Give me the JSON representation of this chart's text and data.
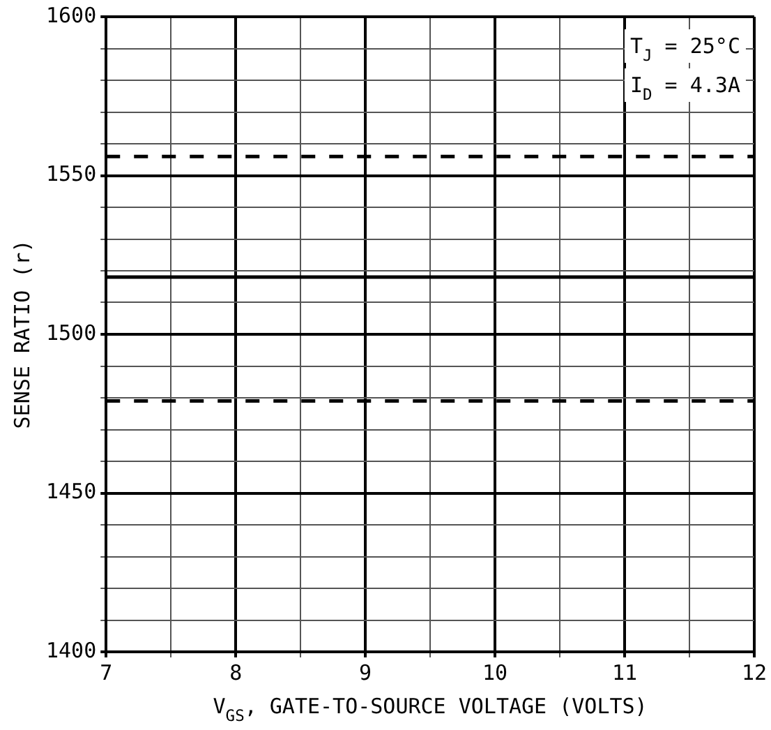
{
  "chart_data": {
    "type": "line",
    "xlabel": "V$_{GS}$, GATE-TO-SOURCE VOLTAGE (VOLTS)",
    "ylabel": "SENSE RATIO (r)",
    "annotations": [
      "T$_{J}$ = 25°C",
      "I$_{D}$ = 4.3A"
    ],
    "xlim": [
      7,
      12
    ],
    "xticks": [
      7,
      {
        "value": 7.5,
        "label": null
      },
      8,
      {
        "value": 8.5,
        "label": null
      },
      9,
      {
        "value": 9.5,
        "label": null
      },
      10,
      {
        "value": 10.5,
        "label": null
      },
      11,
      {
        "value": 11.5,
        "label": null
      },
      12
    ],
    "ylim": [
      1400,
      1600
    ],
    "yticks": [
      1400,
      {
        "value": 1410,
        "label": null
      },
      {
        "value": 1420,
        "label": null
      },
      {
        "value": 1430,
        "label": null
      },
      {
        "value": 1440,
        "label": null
      },
      1450,
      {
        "value": 1460,
        "label": null
      },
      {
        "value": 1470,
        "label": null
      },
      {
        "value": 1480,
        "label": null
      },
      {
        "value": 1490,
        "label": null
      },
      1500,
      {
        "value": 1510,
        "label": null
      },
      {
        "value": 1520,
        "label": null
      },
      {
        "value": 1530,
        "label": null
      },
      {
        "value": 1540,
        "label": null
      },
      1550,
      {
        "value": 1560,
        "label": null
      },
      {
        "value": 1570,
        "label": null
      },
      {
        "value": 1580,
        "label": null
      },
      {
        "value": 1590,
        "label": null
      },
      1600
    ],
    "grid": true,
    "legend": false,
    "ref_lines": [
      {
        "axis": "y",
        "value": 1556,
        "color": "#000000",
        "line_style": "dashed"
      },
      {
        "axis": "y",
        "value": 1518,
        "color": "#000000",
        "line_style": "solid"
      },
      {
        "axis": "y",
        "value": 1479,
        "color": "#000000",
        "line_style": "dashed"
      }
    ]
  }
}
